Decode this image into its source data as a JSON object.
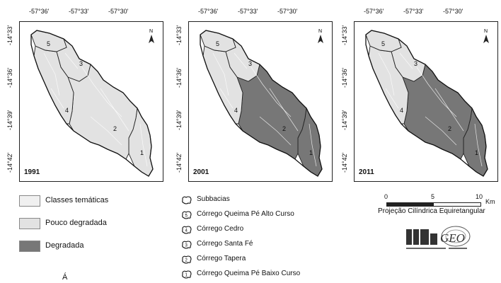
{
  "lon_ticks": [
    "-57°36'",
    "-57°33'",
    "-57°30'"
  ],
  "lat_ticks": [
    "-14°33'",
    "-14°36'",
    "-14°39'",
    "-14°42'"
  ],
  "north_label": "N",
  "panels": [
    {
      "year": "1991",
      "degraded_subbasins": []
    },
    {
      "year": "2001",
      "degraded_subbasins": [
        1,
        2
      ]
    },
    {
      "year": "2011",
      "degraded_subbasins": [
        1,
        2
      ]
    }
  ],
  "subbasin_numbers": [
    "1",
    "2",
    "3",
    "4",
    "5"
  ],
  "legend_classes": {
    "thematic": "Classes temáticas",
    "low": "Pouco degradada",
    "degraded": "Degradada"
  },
  "legend_subbasins": {
    "title": "Subbacias",
    "items": [
      "Córrego Queima Pé Alto Curso",
      "Córrego Cedro",
      "Córrego Santa Fé",
      "Córrego Tapera",
      "Córrego Queima Pé Baixo Curso"
    ],
    "numbers": [
      "5",
      "4",
      "3",
      "2",
      "1"
    ]
  },
  "scale": {
    "ticks": [
      "0",
      "5",
      "10"
    ],
    "unit": "Km"
  },
  "projection": "Projeção Cilíndrica Equiretangular",
  "logo_text": "GEO",
  "bottom_char": "Á",
  "colors": {
    "light": "#e2e2e2",
    "dark": "#777777",
    "thematic": "#eeeeee"
  }
}
